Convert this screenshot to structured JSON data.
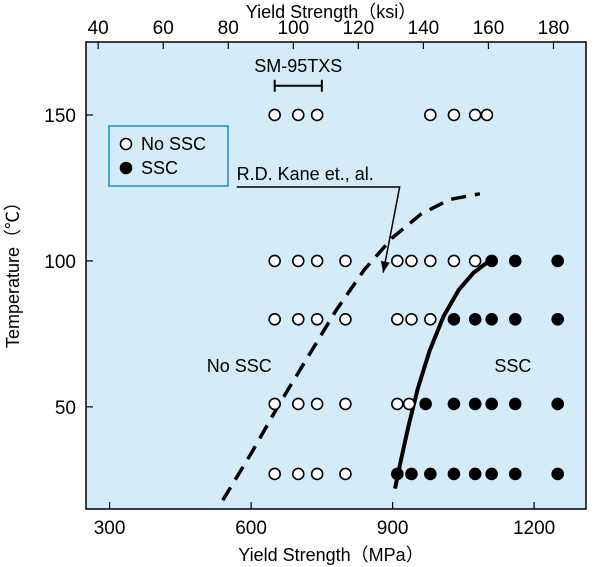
{
  "chart_data": {
    "type": "scatter",
    "xlabel_bottom": "Yield Strength（MPa）",
    "xlabel_top": "Yield Strength（ksi）",
    "ylabel": "Temperature（℃）",
    "xlim": [
      250,
      1310
    ],
    "ylim": [
      15,
      175
    ],
    "xticks_bottom": [
      300,
      600,
      900,
      1200
    ],
    "xticks_top": [
      40,
      60,
      80,
      100,
      120,
      140,
      160,
      180
    ],
    "yticks": [
      50,
      100,
      150
    ],
    "background_color": "#d4ecf9",
    "grid": false,
    "legend": {
      "position": "top-left",
      "entries": [
        {
          "label": "No SSC",
          "marker": "open-circle"
        },
        {
          "label": "SSC",
          "marker": "filled-circle"
        }
      ]
    },
    "series": [
      {
        "name": "No SSC",
        "marker": "open-circle",
        "points": [
          [
            650,
            150
          ],
          [
            700,
            150
          ],
          [
            740,
            150
          ],
          [
            980,
            150
          ],
          [
            1030,
            150
          ],
          [
            1075,
            150
          ],
          [
            1100,
            150
          ],
          [
            650,
            100
          ],
          [
            700,
            100
          ],
          [
            740,
            100
          ],
          [
            800,
            100
          ],
          [
            910,
            100
          ],
          [
            940,
            100
          ],
          [
            980,
            100
          ],
          [
            1030,
            100
          ],
          [
            1075,
            100
          ],
          [
            650,
            80
          ],
          [
            700,
            80
          ],
          [
            740,
            80
          ],
          [
            800,
            80
          ],
          [
            910,
            80
          ],
          [
            940,
            80
          ],
          [
            980,
            80
          ],
          [
            650,
            51
          ],
          [
            700,
            51
          ],
          [
            740,
            51
          ],
          [
            800,
            51
          ],
          [
            910,
            51
          ],
          [
            935,
            51
          ],
          [
            650,
            27
          ],
          [
            700,
            27
          ],
          [
            740,
            27
          ],
          [
            800,
            27
          ]
        ]
      },
      {
        "name": "SSC",
        "marker": "filled-circle",
        "points": [
          [
            1110,
            100
          ],
          [
            1160,
            100
          ],
          [
            1250,
            100
          ],
          [
            1030,
            80
          ],
          [
            1075,
            80
          ],
          [
            1110,
            80
          ],
          [
            1160,
            80
          ],
          [
            1250,
            80
          ],
          [
            970,
            51
          ],
          [
            1030,
            51
          ],
          [
            1075,
            51
          ],
          [
            1110,
            51
          ],
          [
            1160,
            51
          ],
          [
            1250,
            51
          ],
          [
            910,
            27
          ],
          [
            940,
            27
          ],
          [
            980,
            27
          ],
          [
            1030,
            27
          ],
          [
            1075,
            27
          ],
          [
            1110,
            27
          ],
          [
            1160,
            27
          ],
          [
            1250,
            27
          ]
        ]
      }
    ],
    "curves": [
      {
        "style": "dashed",
        "points": [
          [
            540,
            18
          ],
          [
            600,
            34
          ],
          [
            660,
            51
          ],
          [
            720,
            67
          ],
          [
            780,
            83
          ],
          [
            840,
            97
          ],
          [
            900,
            108
          ],
          [
            960,
            116
          ],
          [
            1020,
            121
          ],
          [
            1085,
            123
          ]
        ]
      },
      {
        "style": "solid",
        "points": [
          [
            905,
            22
          ],
          [
            918,
            32
          ],
          [
            933,
            43
          ],
          [
            953,
            56
          ],
          [
            978,
            69
          ],
          [
            1008,
            81
          ],
          [
            1040,
            90
          ],
          [
            1072,
            96
          ],
          [
            1105,
            100
          ]
        ]
      }
    ],
    "annotations": [
      {
        "text": "SM-95TXS",
        "kind": "range-bar",
        "range": [
          650,
          750
        ],
        "y": 160
      },
      {
        "text": "R.D. Kane et., al.",
        "kind": "arrow",
        "label_at": [
          580,
          126
        ],
        "arrow_to": [
          880,
          96
        ]
      },
      {
        "text": "No SSC",
        "kind": "region-label",
        "at": [
          575,
          62
        ]
      },
      {
        "text": "SSC",
        "kind": "region-label",
        "at": [
          1155,
          62
        ]
      }
    ]
  }
}
